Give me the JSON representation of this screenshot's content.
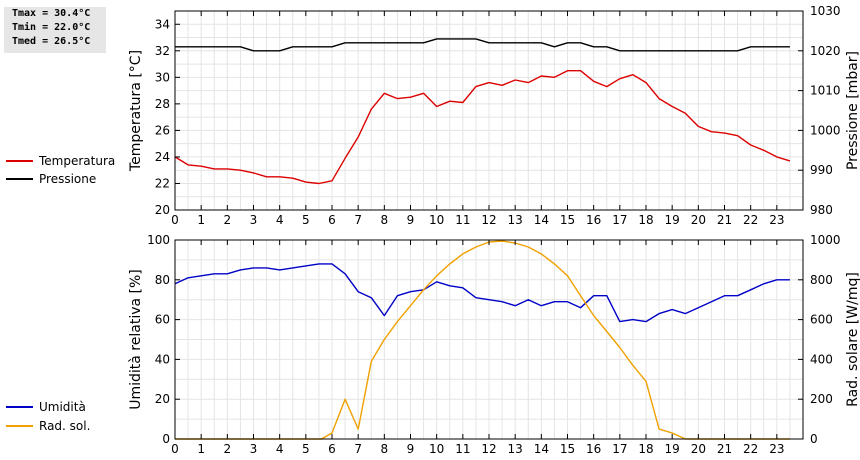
{
  "stats": {
    "tmax": "Tmax = 30.4°C",
    "tmin": "Tmin = 22.0°C",
    "tmed": "Tmed = 26.5°C"
  },
  "legend_top": [
    {
      "label": "Temperatura",
      "color": "#dd0000"
    },
    {
      "label": "Pressione",
      "color": "#000000"
    }
  ],
  "legend_bottom": [
    {
      "label": "Umidità",
      "color": "#0000c8"
    },
    {
      "label": "Rad. sol.",
      "color": "#f0a000"
    }
  ],
  "chart_data": [
    {
      "type": "line",
      "xlim": [
        0,
        24
      ],
      "xticks": [
        0,
        1,
        2,
        3,
        4,
        5,
        6,
        7,
        8,
        9,
        10,
        11,
        12,
        13,
        14,
        15,
        16,
        17,
        18,
        19,
        20,
        21,
        22,
        23
      ],
      "ylabel": "Temperatura [°C]",
      "ylim": [
        20,
        35
      ],
      "yticks": [
        20,
        22,
        24,
        26,
        28,
        30,
        32,
        34
      ],
      "y2label": "Pressione [mbar]",
      "y2lim": [
        980,
        1030
      ],
      "y2ticks": [
        980,
        990,
        1000,
        1010,
        1020,
        1030
      ],
      "grid": true,
      "series": [
        {
          "name": "Temperatura",
          "axis": "left",
          "color": "#dd0000",
          "x": [
            0,
            0.5,
            1,
            1.5,
            2,
            2.5,
            3,
            3.5,
            4,
            4.5,
            5,
            5.5,
            6,
            6.5,
            7,
            7.5,
            8,
            8.5,
            9,
            9.5,
            10,
            10.5,
            11,
            11.5,
            12,
            12.5,
            13,
            13.5,
            14,
            14.5,
            15,
            15.5,
            16,
            16.5,
            17,
            17.5,
            18,
            18.5,
            19,
            19.5,
            20,
            20.5,
            21,
            21.5,
            22,
            22.5,
            23,
            23.5
          ],
          "y": [
            24.0,
            23.4,
            23.3,
            23.1,
            23.1,
            23.0,
            22.8,
            22.5,
            22.5,
            22.4,
            22.1,
            22.0,
            22.2,
            23.9,
            25.5,
            27.6,
            28.8,
            28.4,
            28.5,
            28.8,
            27.8,
            28.2,
            28.1,
            29.3,
            29.6,
            29.4,
            29.8,
            29.6,
            30.1,
            30.0,
            30.5,
            30.5,
            29.7,
            29.3,
            29.9,
            30.2,
            29.6,
            28.4,
            27.8,
            27.3,
            26.3,
            25.9,
            25.8,
            25.6,
            24.9,
            24.5,
            24.0,
            23.7
          ]
        },
        {
          "name": "Pressione",
          "axis": "right",
          "color": "#000000",
          "x": [
            0,
            0.5,
            1,
            1.5,
            2,
            2.5,
            3,
            3.5,
            4,
            4.5,
            5,
            5.5,
            6,
            6.5,
            7,
            7.5,
            8,
            8.5,
            9,
            9.5,
            10,
            10.5,
            11,
            11.5,
            12,
            12.5,
            13,
            13.5,
            14,
            14.5,
            15,
            15.5,
            16,
            16.5,
            17,
            17.5,
            18,
            18.5,
            19,
            19.5,
            20,
            20.5,
            21,
            21.5,
            22,
            22.5,
            23,
            23.5
          ],
          "y": [
            1021,
            1021,
            1021,
            1021,
            1021,
            1021,
            1020,
            1020,
            1020,
            1021,
            1021,
            1021,
            1021,
            1022,
            1022,
            1022,
            1022,
            1022,
            1022,
            1022,
            1023,
            1023,
            1023,
            1023,
            1022,
            1022,
            1022,
            1022,
            1022,
            1021,
            1022,
            1022,
            1021,
            1021,
            1020,
            1020,
            1020,
            1020,
            1020,
            1020,
            1020,
            1020,
            1020,
            1020,
            1021,
            1021,
            1021,
            1021
          ]
        }
      ]
    },
    {
      "type": "line",
      "xlim": [
        0,
        24
      ],
      "xticks": [
        0,
        1,
        2,
        3,
        4,
        5,
        6,
        7,
        8,
        9,
        10,
        11,
        12,
        13,
        14,
        15,
        16,
        17,
        18,
        19,
        20,
        21,
        22,
        23
      ],
      "ylabel": "Umidità relativa [%]",
      "ylim": [
        0,
        100
      ],
      "yticks": [
        0,
        20,
        40,
        60,
        80,
        100
      ],
      "y2label": "Rad. solare [W/mq]",
      "y2lim": [
        0,
        1000
      ],
      "y2ticks": [
        0,
        200,
        400,
        600,
        800,
        1000
      ],
      "grid": true,
      "series": [
        {
          "name": "Umidità",
          "axis": "left",
          "color": "#0000c8",
          "x": [
            0,
            0.5,
            1,
            1.5,
            2,
            2.5,
            3,
            3.5,
            4,
            4.5,
            5,
            5.5,
            6,
            6.5,
            7,
            7.5,
            8,
            8.5,
            9,
            9.5,
            10,
            10.5,
            11,
            11.5,
            12,
            12.5,
            13,
            13.5,
            14,
            14.5,
            15,
            15.5,
            16,
            16.5,
            17,
            17.5,
            18,
            18.5,
            19,
            19.5,
            20,
            20.5,
            21,
            21.5,
            22,
            22.5,
            23,
            23.5
          ],
          "y": [
            78,
            81,
            82,
            83,
            83,
            85,
            86,
            86,
            85,
            86,
            87,
            88,
            88,
            83,
            74,
            71,
            62,
            72,
            74,
            75,
            79,
            77,
            76,
            71,
            70,
            69,
            67,
            70,
            67,
            69,
            69,
            66,
            72,
            72,
            59,
            60,
            59,
            63,
            65,
            63,
            66,
            69,
            72,
            72,
            75,
            78,
            80,
            80
          ]
        },
        {
          "name": "Rad. sol.",
          "axis": "right",
          "color": "#f0a000",
          "x": [
            0,
            1,
            2,
            3,
            4,
            5,
            5.6,
            6,
            6.5,
            7,
            7.5,
            8,
            8.5,
            9,
            9.5,
            10,
            10.5,
            11,
            11.5,
            12,
            12.5,
            13,
            13.5,
            14,
            14.5,
            15,
            15.5,
            16,
            16.5,
            17,
            17.5,
            18,
            18.5,
            19,
            19.5,
            20,
            21,
            22,
            23,
            23.5
          ],
          "y": [
            0,
            0,
            0,
            0,
            0,
            0,
            0,
            30,
            200,
            50,
            390,
            500,
            590,
            670,
            750,
            820,
            880,
            930,
            965,
            990,
            995,
            985,
            965,
            930,
            880,
            820,
            720,
            620,
            540,
            460,
            370,
            290,
            50,
            30,
            0,
            0,
            0,
            0,
            0,
            0
          ]
        }
      ]
    }
  ]
}
